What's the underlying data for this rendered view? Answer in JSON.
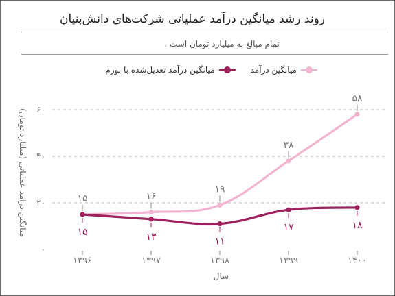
{
  "title": "روند رشد میانگین درآمد عملیاتی شرکت‌های دانش‌بنیان",
  "subtitle": "تمام مبالغ به میلیارد تومان است .",
  "legend": {
    "series_a": "میانگین درآمد",
    "series_b": "میانگین درآمد تعدیل‌شده با تورم"
  },
  "colors": {
    "revenue": "#f2b4d0",
    "adjusted": "#a0205e",
    "revenue_label": "#777777",
    "adjusted_label": "#a0205e",
    "grid": "#b8b8b8",
    "tick": "#777777"
  },
  "chart_data": {
    "type": "line",
    "title": "روند رشد میانگین درآمد عملیاتی شرکت‌های دانش‌بنیان",
    "subtitle": "تمام مبالغ به میلیارد تومان است .",
    "xlabel": "سال",
    "ylabel": "میانگین درآمد عملیاتی (میلیارد تومان)",
    "categories": [
      "۱۳۹۶",
      "۱۳۹۷",
      "۱۳۹۸",
      "۱۳۹۹",
      "۱۴۰۰"
    ],
    "ylim": [
      0,
      60
    ],
    "yticks": [
      0,
      20,
      40,
      60
    ],
    "ytick_labels": [
      "۰",
      "۲۰",
      "۴۰",
      "۶۰"
    ],
    "grid": true,
    "legend_position": "top",
    "series": [
      {
        "name": "میانگین درآمد",
        "values": [
          15,
          16,
          19,
          38,
          58
        ],
        "labels": [
          "۱۵",
          "۱۶",
          "۱۹",
          "۳۸",
          "۵۸"
        ],
        "label_position": "above"
      },
      {
        "name": "میانگین درآمد تعدیل‌شده با تورم",
        "values": [
          15,
          13,
          11,
          17,
          18
        ],
        "labels": [
          "۱۵",
          "۱۳",
          "۱۱",
          "۱۷",
          "۱۸"
        ],
        "label_position": "below"
      }
    ]
  }
}
